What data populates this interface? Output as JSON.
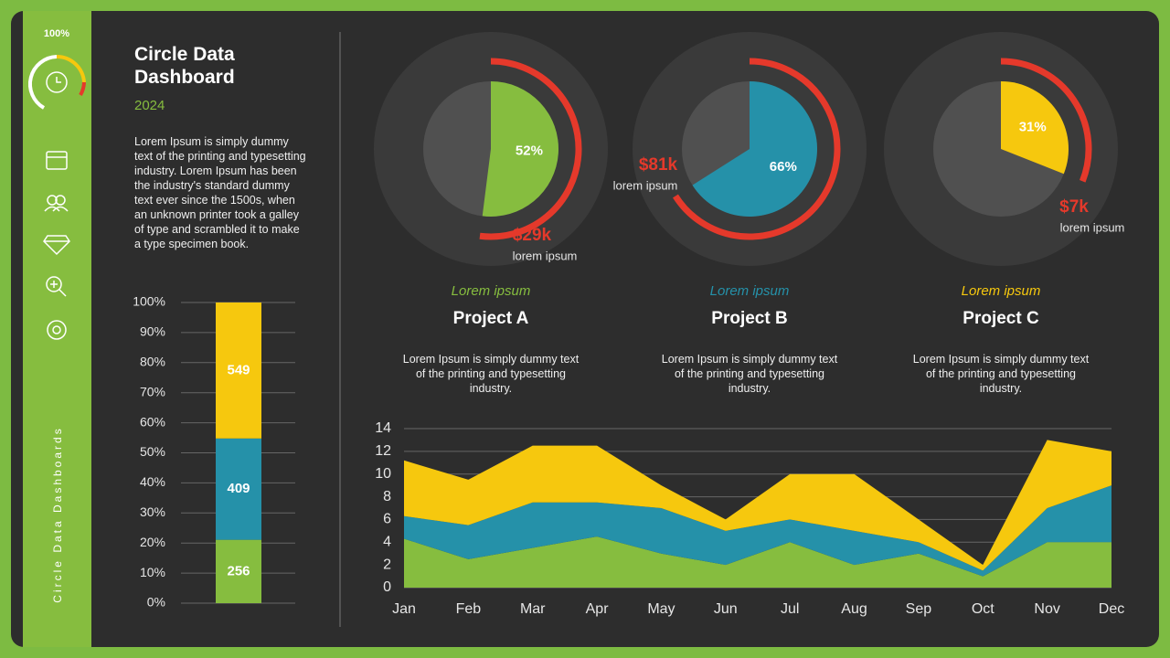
{
  "sidebar": {
    "gauge_label": "100%",
    "vertical_title": "Circle Data Dashboards"
  },
  "header": {
    "title": "Circle Data Dashboard",
    "year": "2024",
    "description": "Lorem Ipsum is simply dummy text of the printing and typesetting industry. Lorem Ipsum has been the industry's standard dummy text ever since the 1500s, when an unknown printer took a galley of type and scrambled it to make a type specimen book."
  },
  "projects": [
    {
      "subtitle": "Lorem ipsum",
      "name": "Project A",
      "description": "Lorem Ipsum is simply dummy text of the printing and typesetting industry."
    },
    {
      "subtitle": "Lorem ipsum",
      "name": "Project B",
      "description": "Lorem Ipsum is simply dummy text of the printing and typesetting industry."
    },
    {
      "subtitle": "Lorem ipsum",
      "name": "Project C",
      "description": "Lorem Ipsum is simply dummy text of the printing and typesetting industry."
    }
  ],
  "chart_data": [
    {
      "type": "stacked_bar",
      "stacking": "percent",
      "series": [
        {
          "color": "#86bd3f",
          "values": [
            256
          ]
        },
        {
          "color": "#2591a9",
          "values": [
            409
          ]
        },
        {
          "color": "#f6c80e",
          "values": [
            549
          ]
        }
      ],
      "ylim": [
        0,
        100
      ],
      "yticks": [
        {
          "value": 0,
          "label": "0%"
        },
        {
          "value": 10,
          "label": "10%"
        },
        {
          "value": 20,
          "label": "20%"
        },
        {
          "value": 30,
          "label": "30%"
        },
        {
          "value": 40,
          "label": "40%"
        },
        {
          "value": 50,
          "label": "50%"
        },
        {
          "value": 60,
          "label": "60%"
        },
        {
          "value": 70,
          "label": "70%"
        },
        {
          "value": 80,
          "label": "80%"
        },
        {
          "value": 90,
          "label": "90%"
        },
        {
          "value": 100,
          "label": "100%"
        }
      ],
      "grid": true
    },
    {
      "type": "pie",
      "values": [
        52
      ],
      "value_labels": [
        "52%"
      ],
      "color": "#86bd3f",
      "annotation": "$29k",
      "annotation_note": "lorem ipsum"
    },
    {
      "type": "pie",
      "values": [
        66
      ],
      "value_labels": [
        "66%"
      ],
      "color": "#2591a9",
      "annotation": "$81k",
      "annotation_note": "lorem ipsum"
    },
    {
      "type": "pie",
      "values": [
        31
      ],
      "value_labels": [
        "31%"
      ],
      "color": "#f6c80e",
      "annotation": "$7k",
      "annotation_note": "lorem ipsum"
    },
    {
      "type": "area",
      "stacked": true,
      "categories": [
        "Jan",
        "Feb",
        "Mar",
        "Apr",
        "May",
        "Jun",
        "Jul",
        "Aug",
        "Sep",
        "Oct",
        "Nov",
        "Dec"
      ],
      "series": [
        {
          "color": "#86bd3f",
          "values": [
            4.3,
            2.5,
            3.5,
            4.5,
            3,
            2,
            4,
            2,
            3,
            1,
            4,
            4
          ]
        },
        {
          "color": "#2591a9",
          "values": [
            2,
            3,
            4,
            3,
            4,
            3,
            2,
            3,
            1,
            0.5,
            3,
            5
          ]
        },
        {
          "color": "#f6c80e",
          "values": [
            4.9,
            4,
            5,
            5,
            2,
            1,
            4,
            5,
            2,
            0.5,
            6,
            3
          ]
        }
      ],
      "ylim": [
        0,
        14
      ],
      "yticks": [
        0,
        2,
        4,
        6,
        8,
        10,
        12,
        14
      ],
      "grid": true
    }
  ]
}
